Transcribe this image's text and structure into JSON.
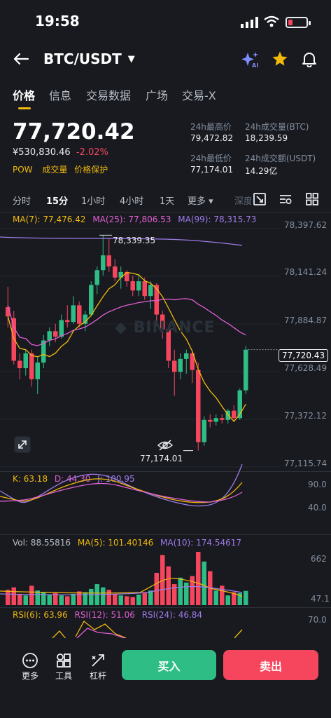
{
  "status": {
    "time": "19:58"
  },
  "header": {
    "pair": "BTC/USDT"
  },
  "tabs": [
    "价格",
    "信息",
    "交易数据",
    "广场",
    "交易-X"
  ],
  "price": {
    "last": "77,720.42",
    "fiat": "¥530,830.46",
    "change": "-2.02%",
    "tags": [
      "POW",
      "成交量",
      "价格保护"
    ]
  },
  "stats": {
    "high_label": "24h最高价",
    "high_value": "79,472.82",
    "vol_btc_label": "24h成交量(BTC)",
    "vol_btc_value": "18,239.59",
    "low_label": "24h最低价",
    "low_value": "77,174.01",
    "vol_usdt_label": "24h成交额(USDT)",
    "vol_usdt_value": "14.29亿"
  },
  "intervals": [
    "分时",
    "15分",
    "1小时",
    "4小时",
    "1天",
    "更多 ▾",
    "深度"
  ],
  "ma": {
    "ma7": "MA(7): 77,476.42",
    "ma25": "MA(25): 77,806.53",
    "ma99": "MA(99): 78,315.73"
  },
  "price_axis": [
    "78,397.62",
    "78,141.24",
    "77,884.87",
    "77,628.49",
    "77,372.12",
    "77,115.74"
  ],
  "current_price_tag": "77,720.43",
  "high_marker": "78,339.35",
  "low_marker": "77,174.01",
  "watermark": "BINANCE",
  "kdj": {
    "k": "K: 63.18",
    "d": "D: 44.30",
    "j": "J: 100.95",
    "axis_top": "90.0",
    "axis_mid": "40.0"
  },
  "vol": {
    "vol": "Vol: 88.55816",
    "ma5": "MA(5): 101.40146",
    "ma10": "MA(10): 174.54617",
    "axis_top": "662",
    "axis_bottom": "47.1"
  },
  "rsi": {
    "rsi6": "RSI(6): 63.96",
    "rsi12": "RSI(12): 51.06",
    "rsi24": "RSI(24): 46.84",
    "axis_top": "70.0"
  },
  "toolbar": {
    "more": "更多",
    "tools": "工具",
    "leverage": "杠杆",
    "buy": "买入",
    "sell": "卖出"
  },
  "colors": {
    "up": "#2ebd85",
    "down": "#f6465d",
    "accent": "#f0b90b",
    "ma7": "#f0b90b",
    "ma25": "#e05fd1",
    "ma99": "#9f7ce8"
  },
  "chart_data": {
    "type": "candlestick",
    "candles": [
      {
        "o": 77950,
        "h": 78060,
        "l": 77840,
        "c": 77900
      },
      {
        "o": 77890,
        "h": 77930,
        "l": 77640,
        "c": 77660
      },
      {
        "o": 77660,
        "h": 77700,
        "l": 77560,
        "c": 77620
      },
      {
        "o": 77620,
        "h": 77720,
        "l": 77580,
        "c": 77700
      },
      {
        "o": 77700,
        "h": 77720,
        "l": 77520,
        "c": 77560
      },
      {
        "o": 77560,
        "h": 77680,
        "l": 77480,
        "c": 77650
      },
      {
        "o": 77650,
        "h": 77800,
        "l": 77620,
        "c": 77770
      },
      {
        "o": 77770,
        "h": 77840,
        "l": 77740,
        "c": 77820
      },
      {
        "o": 77820,
        "h": 77860,
        "l": 77760,
        "c": 77790
      },
      {
        "o": 77790,
        "h": 77910,
        "l": 77780,
        "c": 77880
      },
      {
        "o": 77880,
        "h": 77960,
        "l": 77840,
        "c": 77870
      },
      {
        "o": 77870,
        "h": 78010,
        "l": 77860,
        "c": 77960
      },
      {
        "o": 77960,
        "h": 77980,
        "l": 77840,
        "c": 77860
      },
      {
        "o": 77860,
        "h": 77930,
        "l": 77820,
        "c": 77910
      },
      {
        "o": 77910,
        "h": 78090,
        "l": 77900,
        "c": 78070
      },
      {
        "o": 78070,
        "h": 78170,
        "l": 78020,
        "c": 78150
      },
      {
        "o": 78150,
        "h": 78339,
        "l": 78120,
        "c": 78230
      },
      {
        "o": 78230,
        "h": 78320,
        "l": 78140,
        "c": 78170
      },
      {
        "o": 78170,
        "h": 78210,
        "l": 78090,
        "c": 78110
      },
      {
        "o": 78110,
        "h": 78170,
        "l": 78050,
        "c": 78140
      },
      {
        "o": 78140,
        "h": 78150,
        "l": 78060,
        "c": 78090
      },
      {
        "o": 78090,
        "h": 78120,
        "l": 78010,
        "c": 78040
      },
      {
        "o": 78040,
        "h": 78130,
        "l": 78010,
        "c": 78090
      },
      {
        "o": 78090,
        "h": 78110,
        "l": 77990,
        "c": 78010
      },
      {
        "o": 78010,
        "h": 78090,
        "l": 77940,
        "c": 78070
      },
      {
        "o": 78070,
        "h": 78080,
        "l": 77850,
        "c": 77910
      },
      {
        "o": 77910,
        "h": 77930,
        "l": 77780,
        "c": 77830
      },
      {
        "o": 77830,
        "h": 77850,
        "l": 77620,
        "c": 77660
      },
      {
        "o": 77660,
        "h": 77720,
        "l": 77470,
        "c": 77600
      },
      {
        "o": 77600,
        "h": 77700,
        "l": 77560,
        "c": 77670
      },
      {
        "o": 77670,
        "h": 77720,
        "l": 77590,
        "c": 77700
      },
      {
        "o": 77700,
        "h": 77710,
        "l": 77540,
        "c": 77610
      },
      {
        "o": 77610,
        "h": 77650,
        "l": 77174,
        "c": 77220
      },
      {
        "o": 77220,
        "h": 77360,
        "l": 77200,
        "c": 77340
      },
      {
        "o": 77340,
        "h": 77370,
        "l": 77300,
        "c": 77330
      },
      {
        "o": 77330,
        "h": 77370,
        "l": 77310,
        "c": 77350
      },
      {
        "o": 77350,
        "h": 77370,
        "l": 77320,
        "c": 77340
      },
      {
        "o": 77340,
        "h": 77400,
        "l": 77320,
        "c": 77390
      },
      {
        "o": 77390,
        "h": 77420,
        "l": 77330,
        "c": 77350
      },
      {
        "o": 77350,
        "h": 77510,
        "l": 77340,
        "c": 77500
      },
      {
        "o": 77500,
        "h": 77740,
        "l": 77480,
        "c": 77720
      }
    ],
    "volumes": [
      95,
      110,
      70,
      60,
      120,
      90,
      80,
      65,
      75,
      60,
      55,
      70,
      85,
      80,
      100,
      130,
      110,
      95,
      70,
      60,
      55,
      50,
      65,
      80,
      90,
      200,
      310,
      240,
      130,
      170,
      140,
      180,
      330,
      270,
      210,
      90,
      120,
      60,
      80,
      75,
      88
    ],
    "ylim": [
      77115.74,
      78397.62
    ]
  }
}
